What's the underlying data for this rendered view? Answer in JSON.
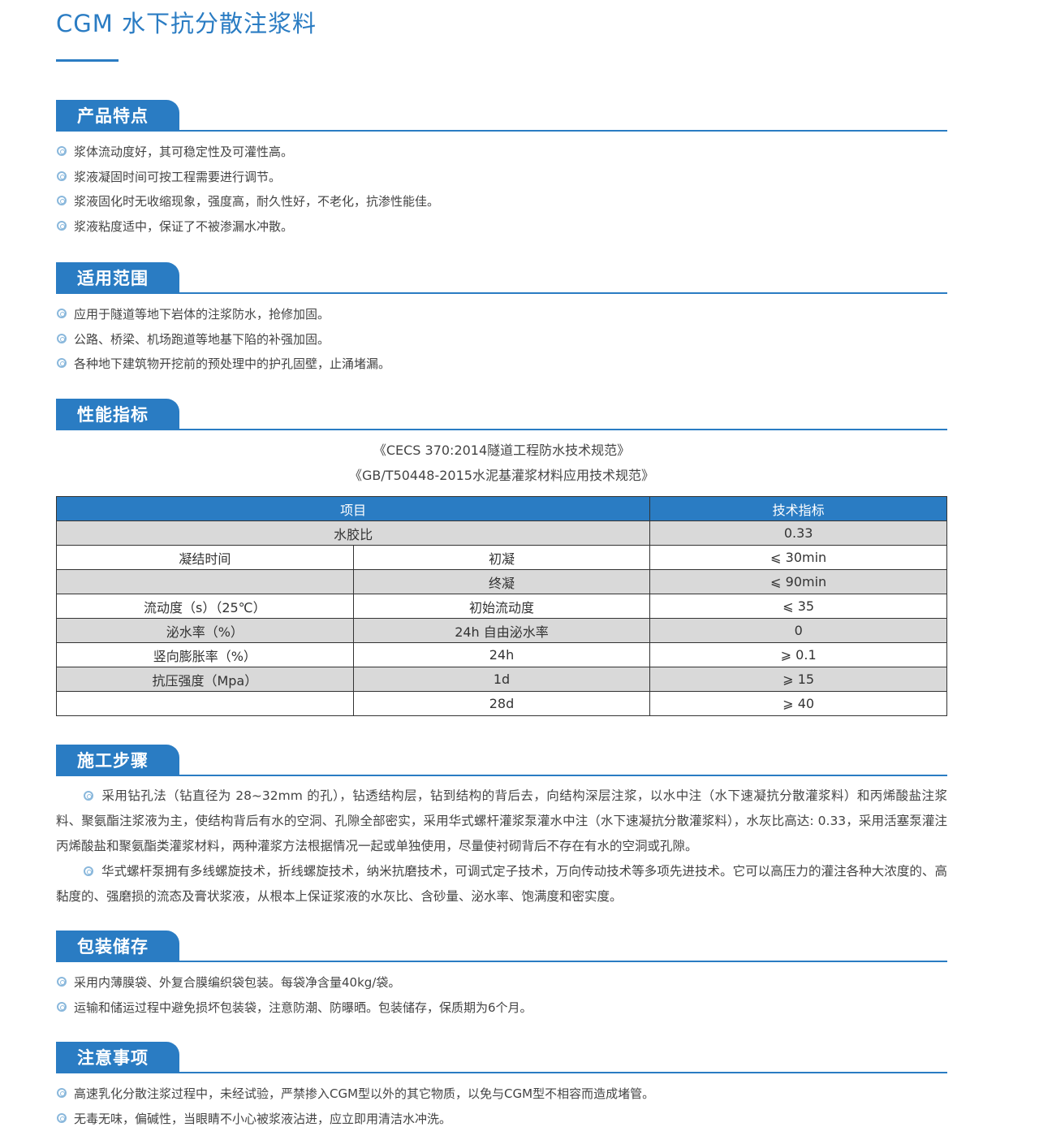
{
  "title": "CGM 水下抗分散注浆料",
  "accent": "#2a7cc3",
  "sections": {
    "features": {
      "heading": "产品特点",
      "items": [
        "浆体流动度好，其可稳定性及可灌性高。",
        "浆液凝固时间可按工程需要进行调节。",
        "浆液固化时无收缩现象，强度高，耐久性好，不老化，抗渗性能佳。",
        "浆液粘度适中，保证了不被渗漏水冲散。"
      ]
    },
    "scope": {
      "heading": "适用范围",
      "items": [
        "应用于隧道等地下岩体的注浆防水，抢修加固。",
        "公路、桥梁、机场跑道等地基下陷的补强加固。",
        "各种地下建筑物开挖前的预处理中的护孔固壁，止涌堵漏。"
      ]
    },
    "performance": {
      "heading": "性能指标",
      "standards": [
        "《CECS 370:2014隧道工程防水技术规范》",
        "《GB/T50448-2015水泥基灌浆材料应用技术规范》"
      ],
      "table": {
        "header": [
          "项目",
          "技术指标"
        ],
        "rows": [
          [
            "水胶比",
            "",
            "0.33"
          ],
          [
            "凝结时间",
            "初凝",
            "⩽ 30min"
          ],
          [
            "",
            "终凝",
            "⩽ 90min"
          ],
          [
            "流动度（s）（25℃）",
            "初始流动度",
            "⩽ 35"
          ],
          [
            "泌水率（%）",
            "24h 自由泌水率",
            "0"
          ],
          [
            "竖向膨胀率（%）",
            "24h",
            "⩾ 0.1"
          ],
          [
            "抗压强度（Mpa）",
            "1d",
            "⩾ 15"
          ],
          [
            "",
            "28d",
            "⩾ 40"
          ]
        ]
      }
    },
    "construction": {
      "heading": "施工步骤",
      "paragraphs": [
        "采用钻孔法（钻直径为 28~32mm 的孔），钻透结构层，钻到结构的背后去，向结构深层注浆，以水中注（水下速凝抗分散灌浆料）和丙烯酸盐注浆料、聚氨酯注浆液为主，使结构背后有水的空洞、孔隙全部密实，采用华式螺杆灌浆泵灌水中注（水下速凝抗分散灌浆料），水灰比高达: 0.33，采用活塞泵灌注丙烯酸盐和聚氨酯类灌浆材料，两种灌浆方法根据情况一起或单独使用，尽量使衬砌背后不存在有水的空洞或孔隙。",
        "华式螺杆泵拥有多线螺旋技术，折线螺旋技术，纳米抗磨技术，可调式定子技术，万向传动技术等多项先进技术。它可以高压力的灌注各种大浓度的、高黏度的、强磨损的流态及膏状浆液，从根本上保证浆液的水灰比、含砂量、泌水率、饱满度和密实度。"
      ]
    },
    "packaging": {
      "heading": "包装储存",
      "items": [
        "采用内薄膜袋、外复合膜编织袋包装。每袋净含量40kg/袋。",
        "运输和储运过程中避免损坏包装袋，注意防潮、防曝晒。包装储存，保质期为6个月。"
      ]
    },
    "notes": {
      "heading": "注意事项",
      "items": [
        "高速乳化分散注浆过程中，未经试验，严禁掺入CGM型以外的其它物质，以免与CGM型不相容而造成堵管。",
        "无毒无味，偏碱性，当眼睛不小心被浆液沾进，应立即用清洁水冲洗。"
      ]
    }
  }
}
